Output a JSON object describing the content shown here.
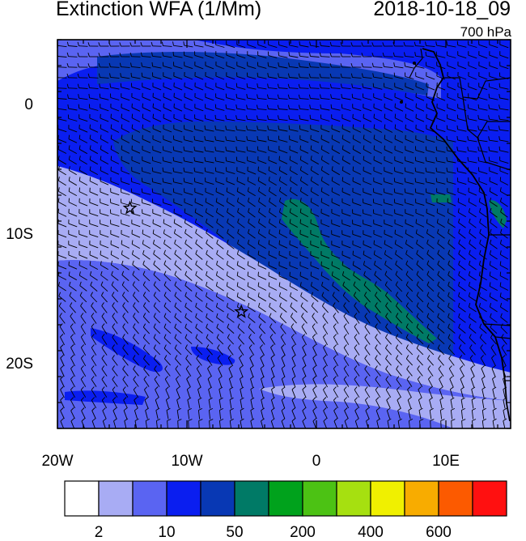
{
  "header": {
    "title": "Extinction WFA (1/Mm)",
    "datetime": "2018-10-18_09",
    "level": "700 hPa"
  },
  "map": {
    "lon_range": [
      -20,
      15
    ],
    "lat_range": [
      -25,
      5
    ],
    "x_ticks": [
      {
        "value": -20,
        "label": "20W"
      },
      {
        "value": -10,
        "label": "10W"
      },
      {
        "value": 0,
        "label": "0"
      },
      {
        "value": 10,
        "label": "10E"
      }
    ],
    "y_ticks": [
      {
        "value": 0,
        "label": "0"
      },
      {
        "value": -10,
        "label": "10S"
      },
      {
        "value": -20,
        "label": "20S"
      }
    ],
    "markers": [
      {
        "name": "star-marker-north",
        "lon": -14.4,
        "lat": -8.0
      },
      {
        "name": "star-marker-south",
        "lon": -5.8,
        "lat": -16.0
      }
    ],
    "overlay": "wind-barbs",
    "coastline": "west-africa"
  },
  "colorbar": {
    "colors": [
      "#ffffff",
      "#a8acf4",
      "#5a64f2",
      "#0a1ef0",
      "#0838b4",
      "#007a66",
      "#00a21c",
      "#4cc214",
      "#a6e010",
      "#f0f000",
      "#f8ac00",
      "#fc5a00",
      "#ff1010"
    ],
    "labels": [
      {
        "text": "2",
        "after_box": 1
      },
      {
        "text": "10",
        "after_box": 3
      },
      {
        "text": "50",
        "after_box": 5
      },
      {
        "text": "200",
        "after_box": 7
      },
      {
        "text": "400",
        "after_box": 9
      },
      {
        "text": "600",
        "after_box": 11
      }
    ]
  }
}
